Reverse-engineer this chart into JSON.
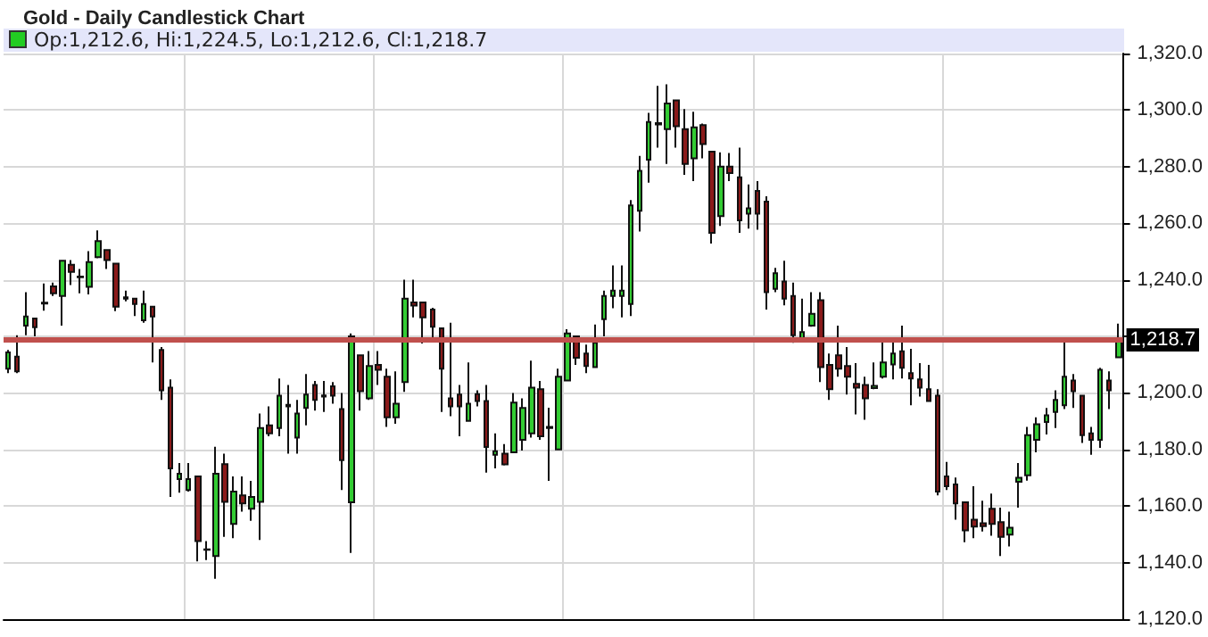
{
  "chart_data": {
    "type": "candlestick",
    "title": "Gold - Daily Candlestick Chart",
    "annotations": [
      "Op:1,212.6, Hi:1,224.5, Lo:1,212.6, Cl:1,218.7"
    ],
    "categories": [
      null,
      null,
      null,
      null,
      null,
      null,
      null,
      null,
      null,
      null,
      null,
      null,
      null,
      null,
      null,
      null,
      null,
      null,
      null,
      null,
      null,
      null,
      null,
      null,
      null,
      null,
      null,
      null,
      null,
      null,
      null,
      null,
      null,
      null,
      null,
      null,
      null,
      null,
      null,
      null,
      null,
      null,
      null,
      null,
      null,
      null,
      null,
      null,
      null,
      null,
      null,
      null,
      null,
      null,
      null,
      null,
      null,
      null,
      null,
      null,
      null,
      null,
      null,
      null,
      null,
      null,
      null,
      null,
      null,
      null,
      null,
      null,
      null,
      null,
      null,
      null,
      null,
      null,
      null,
      null,
      null,
      null,
      null,
      null,
      null,
      null,
      null,
      null,
      null,
      null,
      null,
      null,
      null,
      null,
      null,
      null,
      null,
      null,
      null,
      null,
      null,
      null,
      null,
      null,
      null,
      null,
      null,
      null,
      null,
      null,
      null,
      null,
      null,
      null,
      null,
      null,
      null,
      null,
      null,
      null,
      null,
      null,
      null,
      null
    ],
    "ohlc": [
      [
        1208.6,
        1215.2,
        1207,
        1214.3
      ],
      [
        1212.8,
        1220.4,
        1207,
        1207.6
      ],
      [
        1223.8,
        1235.6,
        1220.4,
        1227
      ],
      [
        1226.3,
        1226.3,
        1220,
        1223.2
      ],
      [
        1231.6,
        1238.7,
        1229.1,
        1231.9
      ],
      [
        1237.7,
        1239,
        1234.3,
        1235.2
      ],
      [
        1234.3,
        1246.7,
        1223.8,
        1246.7
      ],
      [
        1245.3,
        1247,
        1238.1,
        1242.8
      ],
      [
        1240.9,
        1243.8,
        1235.2,
        1241.1
      ],
      [
        1237.5,
        1250.1,
        1234.8,
        1246.3
      ],
      [
        1248,
        1257.5,
        1247.6,
        1253.7
      ],
      [
        1250.5,
        1250.5,
        1243.8,
        1247
      ],
      [
        1245.7,
        1245.7,
        1228.9,
        1230.5
      ],
      [
        1233.8,
        1236.2,
        1232.4,
        1233.3
      ],
      [
        1233.3,
        1233.3,
        1227.2,
        1231.4
      ],
      [
        1225.7,
        1236.2,
        1224.8,
        1231.4
      ],
      [
        1230.5,
        1230.5,
        1210.8,
        1227
      ],
      [
        1215.2,
        1216.2,
        1197.5,
        1200.9
      ],
      [
        1201.9,
        1204.8,
        1163.2,
        1173.3
      ],
      [
        1169.5,
        1175.2,
        1164.7,
        1171.4
      ],
      [
        1165.7,
        1175.2,
        1165.1,
        1169.5
      ],
      [
        1170.5,
        1170.5,
        1140.4,
        1147.6
      ],
      [
        1144.7,
        1147.6,
        1140.9,
        1144.5
      ],
      [
        1142.3,
        1181,
        1134.3,
        1171.4
      ],
      [
        1174.8,
        1178.5,
        1149.1,
        1161.5
      ],
      [
        1153.7,
        1170.5,
        1148.6,
        1165.1
      ],
      [
        1163.8,
        1170.5,
        1158,
        1160.9
      ],
      [
        1159,
        1168.9,
        1154.8,
        1163.2
      ],
      [
        1161.5,
        1192.7,
        1148,
        1187.6
      ],
      [
        1188.5,
        1195.2,
        1184.7,
        1185.7
      ],
      [
        1187.6,
        1205.1,
        1184.7,
        1199
      ],
      [
        1195.2,
        1202.8,
        1178.5,
        1195.8
      ],
      [
        1184.2,
        1197.5,
        1178.5,
        1192.7
      ],
      [
        1194.7,
        1206.7,
        1188.5,
        1199.4
      ],
      [
        1202.8,
        1204.2,
        1193.7,
        1197.5
      ],
      [
        1199.1,
        1204.2,
        1193.3,
        1198.7
      ],
      [
        1202.3,
        1203.8,
        1196.2,
        1199
      ],
      [
        1194.3,
        1200,
        1165.7,
        1176.2
      ],
      [
        1161.3,
        1221,
        1143.4,
        1220
      ],
      [
        1213.3,
        1213.3,
        1193.7,
        1200.6
      ],
      [
        1198.1,
        1214.8,
        1197.5,
        1209.5
      ],
      [
        1209.9,
        1214.8,
        1202.8,
        1208.2
      ],
      [
        1205.7,
        1208.6,
        1188,
        1191.4
      ],
      [
        1191.4,
        1207.6,
        1189.1,
        1196.2
      ],
      [
        1203.8,
        1240,
        1200.4,
        1233.3
      ],
      [
        1232,
        1240,
        1226.7,
        1230.9
      ],
      [
        1232,
        1232,
        1217.5,
        1226.7
      ],
      [
        1229.5,
        1230.1,
        1218.1,
        1223.4
      ],
      [
        1222.8,
        1222.8,
        1193.3,
        1208.6
      ],
      [
        1198.1,
        1224.8,
        1191.8,
        1195.2
      ],
      [
        1199.4,
        1202.8,
        1184.7,
        1195.2
      ],
      [
        1190.1,
        1210.8,
        1190.1,
        1196.2
      ],
      [
        1199.6,
        1200.9,
        1195.2,
        1197.1
      ],
      [
        1197.1,
        1202.8,
        1171.8,
        1180.9
      ],
      [
        1178.1,
        1185.7,
        1173.3,
        1179.4
      ],
      [
        1178.5,
        1181.9,
        1174.3,
        1174.7
      ],
      [
        1179,
        1200,
        1179,
        1196.6
      ],
      [
        1183.4,
        1198.1,
        1179.6,
        1194.7
      ],
      [
        1185.7,
        1211.4,
        1184.2,
        1201.9
      ],
      [
        1201.3,
        1204.2,
        1183.4,
        1184.7
      ],
      [
        1188,
        1194.8,
        1168.9,
        1187.6
      ],
      [
        1180,
        1208.6,
        1180,
        1205.7
      ],
      [
        1204.4,
        1222.5,
        1204.4,
        1221
      ],
      [
        1220,
        1220,
        1209.9,
        1212.4
      ],
      [
        1213.9,
        1217.1,
        1207,
        1209.5
      ],
      [
        1209.1,
        1224.2,
        1209.1,
        1217.7
      ],
      [
        1226.1,
        1236.2,
        1220,
        1234.3
      ],
      [
        1234.3,
        1245.1,
        1229.9,
        1236.2
      ],
      [
        1234.3,
        1245.1,
        1226.7,
        1236.2
      ],
      [
        1231.4,
        1268.2,
        1227.2,
        1266.3
      ],
      [
        1264.4,
        1283.8,
        1257.1,
        1278.5
      ],
      [
        1282.5,
        1299,
        1274.3,
        1295.8
      ],
      [
        1294.9,
        1308.6,
        1286.7,
        1295.4
      ],
      [
        1293.3,
        1309.1,
        1281,
        1302.3
      ],
      [
        1303.4,
        1303.4,
        1286.7,
        1294.3
      ],
      [
        1293.3,
        1300.4,
        1277.1,
        1281
      ],
      [
        1282.9,
        1299.4,
        1274.9,
        1293.9
      ],
      [
        1294.7,
        1295.2,
        1282.9,
        1288
      ],
      [
        1285.3,
        1285.3,
        1252.8,
        1256.6
      ],
      [
        1262.5,
        1285.1,
        1259,
        1280
      ],
      [
        1280,
        1284.8,
        1274.9,
        1277.7
      ],
      [
        1276.2,
        1286.7,
        1256.6,
        1261
      ],
      [
        1263.4,
        1273.7,
        1258.1,
        1265.3
      ],
      [
        1271.4,
        1274.9,
        1257.7,
        1263.4
      ],
      [
        1267.6,
        1269.5,
        1229.5,
        1235.6
      ],
      [
        1236.8,
        1244.2,
        1235.6,
        1242.3
      ],
      [
        1239.4,
        1246.7,
        1231,
        1233.3
      ],
      [
        1234.3,
        1239,
        1217.7,
        1220.4
      ],
      [
        1219,
        1233.3,
        1219,
        1221.5
      ],
      [
        1223.8,
        1235.6,
        1223.4,
        1228
      ],
      [
        1232.8,
        1235.6,
        1203.8,
        1209.1
      ],
      [
        1209.9,
        1213.9,
        1197.5,
        1201.3
      ],
      [
        1213.3,
        1223.8,
        1205.7,
        1208.6
      ],
      [
        1209.5,
        1216.2,
        1199.4,
        1205.7
      ],
      [
        1203.2,
        1210.5,
        1192.4,
        1201.9
      ],
      [
        1202.8,
        1205.7,
        1190.5,
        1198.1
      ],
      [
        1201.7,
        1210.8,
        1201.3,
        1202.5
      ],
      [
        1205.7,
        1219,
        1205.1,
        1210.8
      ],
      [
        1210.1,
        1219,
        1204.8,
        1213.9
      ],
      [
        1214.7,
        1223.8,
        1205.1,
        1208.9
      ],
      [
        1207,
        1215.6,
        1195.6,
        1205.1
      ],
      [
        1204.8,
        1210.5,
        1198.7,
        1201.9
      ],
      [
        1201.3,
        1209.9,
        1196.8,
        1197.1
      ],
      [
        1199,
        1201.3,
        1163.8,
        1165.1
      ],
      [
        1170.5,
        1175.6,
        1165.7,
        1167
      ],
      [
        1167.6,
        1170.1,
        1155.2,
        1160.9
      ],
      [
        1161.3,
        1161.3,
        1147.2,
        1151.4
      ],
      [
        1155.2,
        1167,
        1148.6,
        1152.7
      ],
      [
        1153.9,
        1161.9,
        1151,
        1152.9
      ],
      [
        1159,
        1164.4,
        1149.5,
        1153.7
      ],
      [
        1154.3,
        1159.4,
        1142.3,
        1149.1
      ],
      [
        1149.9,
        1158,
        1145.7,
        1152.3
      ],
      [
        1168.6,
        1175.2,
        1159.4,
        1170
      ],
      [
        1170.9,
        1188,
        1169,
        1185.1
      ],
      [
        1183.4,
        1191.4,
        1179,
        1188.9
      ],
      [
        1189.7,
        1194.7,
        1185.3,
        1192.1
      ],
      [
        1193.3,
        1200.9,
        1187.6,
        1197.5
      ],
      [
        1195.6,
        1219.4,
        1194.3,
        1205.7
      ],
      [
        1204.4,
        1206.7,
        1194.7,
        1200.6
      ],
      [
        1199,
        1199,
        1182.3,
        1185.1
      ],
      [
        1185.7,
        1188,
        1178.1,
        1183.4
      ],
      [
        1183.4,
        1208.9,
        1180.6,
        1208.2
      ],
      [
        1204.4,
        1207.6,
        1194.3,
        1200.9
      ],
      [
        1212.6,
        1224.5,
        1212.6,
        1218.7
      ]
    ],
    "colors": [
      "#33cc33",
      "#8b1a1a",
      "#33cc33",
      "#8b1a1a",
      "#33cc33",
      "#8b1a1a",
      "#33cc33",
      "#8b1a1a",
      "#33cc33",
      "#33cc33",
      "#33cc33",
      "#8b1a1a",
      "#8b1a1a",
      "#8b1a1a",
      "#8b1a1a",
      "#33cc33",
      "#8b1a1a",
      "#8b1a1a",
      "#8b1a1a",
      "#33cc33",
      "#33cc33",
      "#8b1a1a",
      "#8b1a1a",
      "#33cc33",
      "#8b1a1a",
      "#33cc33",
      "#8b1a1a",
      "#33cc33",
      "#33cc33",
      "#8b1a1a",
      "#33cc33",
      "#33cc33",
      "#33cc33",
      "#33cc33",
      "#8b1a1a",
      "#8b1a1a",
      "#8b1a1a",
      "#8b1a1a",
      "#33cc33",
      "#8b1a1a",
      "#33cc33",
      "#8b1a1a",
      "#8b1a1a",
      "#33cc33",
      "#33cc33",
      "#8b1a1a",
      "#8b1a1a",
      "#8b1a1a",
      "#8b1a1a",
      "#8b1a1a",
      "#8b1a1a",
      "#33cc33",
      "#8b1a1a",
      "#8b1a1a",
      "#33cc33",
      "#8b1a1a",
      "#33cc33",
      "#33cc33",
      "#33cc33",
      "#8b1a1a",
      "#8b1a1a",
      "#33cc33",
      "#33cc33",
      "#8b1a1a",
      "#8b1a1a",
      "#33cc33",
      "#33cc33",
      "#33cc33",
      "#33cc33",
      "#33cc33",
      "#33cc33",
      "#33cc33",
      "#33cc33",
      "#33cc33",
      "#8b1a1a",
      "#8b1a1a",
      "#33cc33",
      "#8b1a1a",
      "#8b1a1a",
      "#33cc33",
      "#8b1a1a",
      "#8b1a1a",
      "#33cc33",
      "#8b1a1a",
      "#8b1a1a",
      "#33cc33",
      "#8b1a1a",
      "#8b1a1a",
      "#33cc33",
      "#33cc33",
      "#8b1a1a",
      "#8b1a1a",
      "#8b1a1a",
      "#8b1a1a",
      "#8b1a1a",
      "#8b1a1a",
      "#33cc33",
      "#33cc33",
      "#33cc33",
      "#8b1a1a",
      "#8b1a1a",
      "#8b1a1a",
      "#8b1a1a",
      "#8b1a1a",
      "#8b1a1a",
      "#8b1a1a",
      "#8b1a1a",
      "#8b1a1a",
      "#8b1a1a",
      "#8b1a1a",
      "#8b1a1a",
      "#33cc33",
      "#33cc33",
      "#33cc33",
      "#33cc33",
      "#33cc33",
      "#33cc33",
      "#33cc33",
      "#8b1a1a",
      "#8b1a1a",
      "#8b1a1a",
      "#33cc33",
      "#8b1a1a",
      "#33cc33"
    ],
    "ylim": [
      1120,
      1320
    ],
    "yticks": [
      {
        "value": 1120,
        "label": "1,120.0"
      },
      {
        "value": 1140,
        "label": "1,140.0"
      },
      {
        "value": 1160,
        "label": "1,160.0"
      },
      {
        "value": 1180,
        "label": "1,180.0"
      },
      {
        "value": 1200,
        "label": "1,200.0"
      },
      {
        "value": 1220,
        "label": null
      },
      {
        "value": 1240,
        "label": "1,240.0"
      },
      {
        "value": 1260,
        "label": "1,260.0"
      },
      {
        "value": 1280,
        "label": "1,280.0"
      },
      {
        "value": 1300,
        "label": "1,300.0"
      },
      {
        "value": 1320,
        "label": "1,320.0"
      }
    ],
    "ref_lines": [
      {
        "axis": "y",
        "value": 1218.7,
        "label": "1,218.7",
        "color": "#c0504d"
      }
    ],
    "grid": true,
    "tick_labels": "y"
  }
}
